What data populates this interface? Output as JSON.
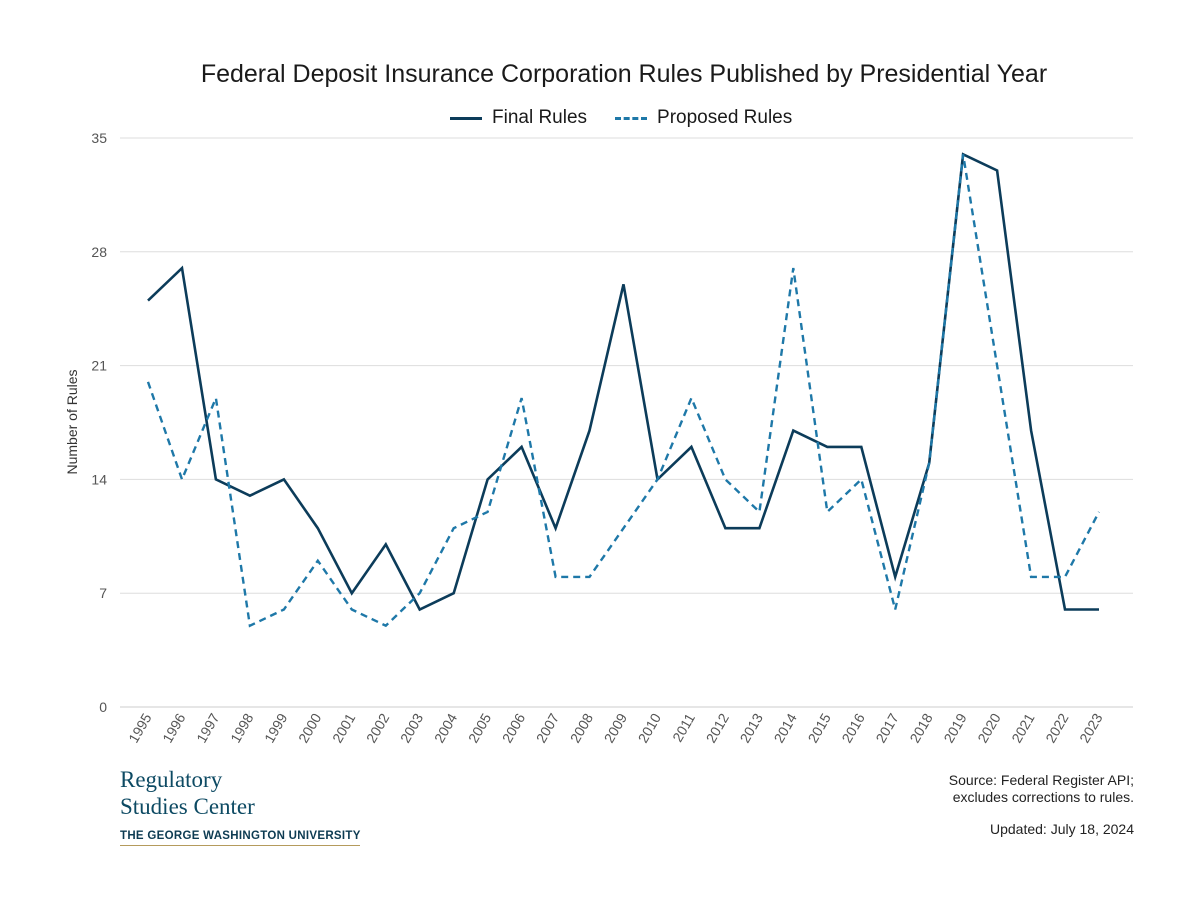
{
  "chart_data": {
    "type": "line",
    "title": "Federal Deposit Insurance Corporation Rules Published by Presidential Year",
    "xlabel": "",
    "ylabel": "Number of Rules",
    "x": [
      "1995",
      "1996",
      "1997",
      "1998",
      "1999",
      "2000",
      "2001",
      "2002",
      "2003",
      "2004",
      "2005",
      "2006",
      "2007",
      "2008",
      "2009",
      "2010",
      "2011",
      "2012",
      "2013",
      "2014",
      "2015",
      "2016",
      "2017",
      "2018",
      "2019",
      "2020",
      "2021",
      "2022",
      "2023"
    ],
    "series": [
      {
        "name": "Final Rules",
        "color": "#0c3c5a",
        "dash": "solid",
        "values": [
          25,
          27,
          14,
          13,
          14,
          11,
          7,
          10,
          6,
          7,
          14,
          16,
          11,
          17,
          26,
          14,
          16,
          11,
          11,
          17,
          16,
          16,
          8,
          15,
          34,
          33,
          17,
          6,
          6
        ]
      },
      {
        "name": "Proposed Rules",
        "color": "#1e78a8",
        "dash": "dashed",
        "values": [
          20,
          14,
          19,
          5,
          6,
          9,
          6,
          5,
          7,
          11,
          12,
          19,
          8,
          8,
          11,
          14,
          19,
          14,
          12,
          27,
          12,
          14,
          6,
          15,
          34,
          21,
          8,
          8,
          12
        ]
      }
    ],
    "ylim": [
      0,
      35
    ],
    "yticks": [
      0,
      7,
      14,
      21,
      28,
      35
    ],
    "grid": true,
    "legend_position": "top-center"
  },
  "branding": {
    "line1": "Regulatory",
    "line2": "Studies Center",
    "university": "THE GEORGE WASHINGTON UNIVERSITY",
    "color": "#0d4a63"
  },
  "footer": {
    "source_line1": "Source: Federal Register API;",
    "source_line2": "excludes corrections to rules.",
    "updated": "Updated: July 18, 2024"
  }
}
